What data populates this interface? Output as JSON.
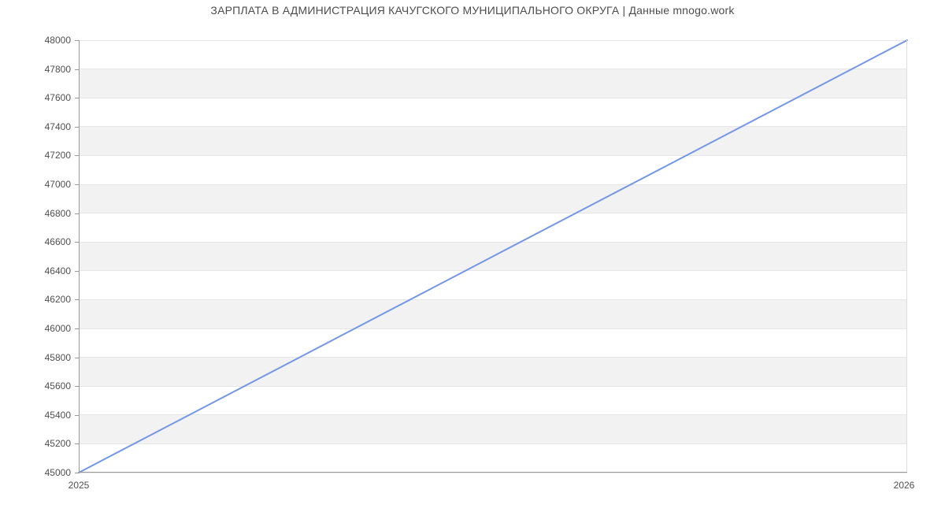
{
  "title": "ЗАРПЛАТА В АДМИНИСТРАЦИЯ КАЧУГСКОГО МУНИЦИПАЛЬНОГО ОКРУГА | Данные mnogo.work",
  "chart_data": {
    "type": "line",
    "title": "ЗАРПЛАТА В АДМИНИСТРАЦИЯ КАЧУГСКОГО МУНИЦИПАЛЬНОГО ОКРУГА | Данные mnogo.work",
    "x": [
      2025,
      2026
    ],
    "series": [
      {
        "name": "",
        "values": [
          45000,
          48000
        ]
      }
    ],
    "xticks": [
      "2025",
      "2026"
    ],
    "xtick_values": [
      2025,
      2026
    ],
    "yticks": [
      "45000",
      "45200",
      "45400",
      "45600",
      "45800",
      "46000",
      "46200",
      "46400",
      "46600",
      "46800",
      "47000",
      "47200",
      "47400",
      "47600",
      "47800",
      "48000"
    ],
    "ytick_values": [
      45000,
      45200,
      45400,
      45600,
      45800,
      46000,
      46200,
      46400,
      46600,
      46800,
      47000,
      47200,
      47400,
      47600,
      47800,
      48000
    ],
    "xlim": [
      2025,
      2026
    ],
    "ylim": [
      45000,
      48000
    ],
    "xlabel": "",
    "ylabel": "",
    "legend": "none",
    "grid": "horizontal gridlines with alternating shaded bands every 200",
    "line_color": "#7397e6",
    "line_width": 2,
    "band_fill": "#f2f2f2",
    "gridline_color": "#e6e6e6",
    "axis_color": "#9a9a9a",
    "right_border_color": "#dddddd",
    "tick_label_color": "#4f4f4f",
    "title_color": "#4c4c4c",
    "background": "#ffffff"
  }
}
